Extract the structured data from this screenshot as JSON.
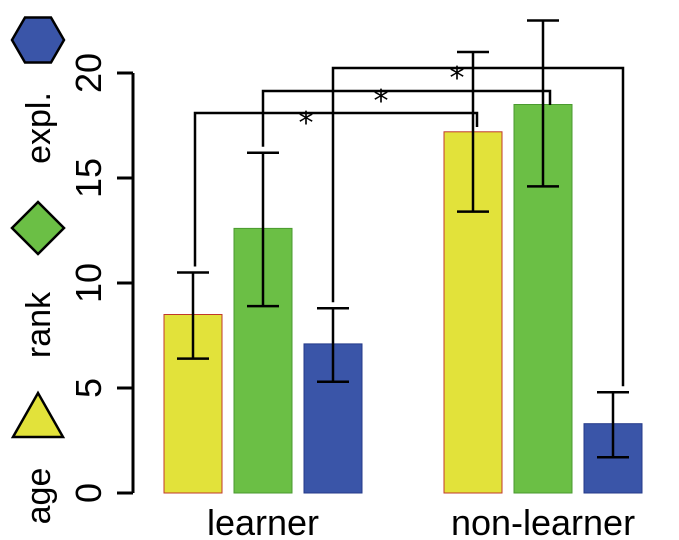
{
  "chart_data": {
    "type": "bar",
    "categories": [
      "learner",
      "non-learner"
    ],
    "series": [
      {
        "name": "age",
        "color": "#e2e23a",
        "stroke": "#c0392b",
        "marker": "triangle",
        "values": [
          8.5,
          17.2
        ],
        "err_low": [
          6.4,
          13.4
        ],
        "err_high": [
          10.5,
          21.0
        ]
      },
      {
        "name": "rank",
        "color": "#6bbf45",
        "stroke": "#4a9a2f",
        "marker": "diamond",
        "values": [
          12.6,
          18.5
        ],
        "err_low": [
          8.9,
          14.6
        ],
        "err_high": [
          16.2,
          22.5
        ]
      },
      {
        "name": "expl.",
        "color": "#3a55a8",
        "stroke": "#24398a",
        "marker": "hexagon",
        "values": [
          7.1,
          3.3
        ],
        "err_low": [
          5.3,
          1.7
        ],
        "err_high": [
          8.8,
          4.8
        ]
      }
    ],
    "ylim": [
      0,
      22
    ],
    "yticks": [
      0,
      5,
      10,
      15,
      20
    ],
    "ytick_labels": [
      "0",
      "5",
      "10",
      "15",
      "20"
    ],
    "xlabel": "",
    "ylabel": "",
    "title": "",
    "legend_position": "left, rotated vertical",
    "grid": false,
    "significance": [
      {
        "series_index": 0,
        "label": "*"
      },
      {
        "series_index": 1,
        "label": "*"
      },
      {
        "series_index": 2,
        "label": "*"
      }
    ]
  }
}
